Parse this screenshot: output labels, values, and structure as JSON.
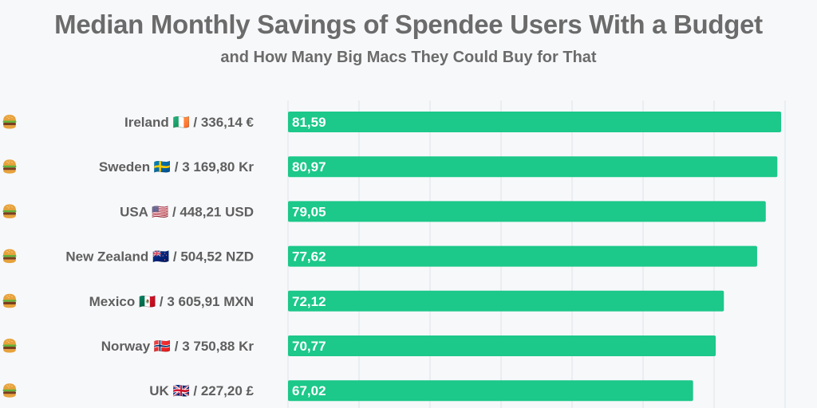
{
  "title": "Median Monthly Savings of Spendee Users With a Budget",
  "subtitle": "and How Many Big Macs They Could Buy for That",
  "colors": {
    "bar": "#1cc88a",
    "gridline": "#dfe3e8",
    "text": "#5f5f5f",
    "bun": "#e7a23b",
    "patty": "#7a3e1d",
    "lettuce": "#5fb33a"
  },
  "chart_data": {
    "type": "bar",
    "orientation": "horizontal",
    "title": "Median Monthly Savings of Spendee Users With a Budget",
    "subtitle": "and How Many Big Macs They Could Buy for That",
    "categories": [
      "Ireland 🇮🇪 / 336,14 €",
      "Sweden 🇸🇪 / 3 169,80 Kr",
      "USA 🇺🇸 / 448,21 USD",
      "New Zealand 🇳🇿 / 504,52 NZD",
      "Mexico 🇲🇽 / 3 605,91 MXN",
      "Norway 🇳🇴 / 3 750,88 Kr",
      "UK 🇬🇧 / 227,20 £"
    ],
    "values": [
      81.59,
      80.97,
      79.05,
      77.62,
      72.12,
      70.77,
      67.02
    ],
    "value_labels": [
      "81,59",
      "80,97",
      "79,05",
      "77,62",
      "72,12",
      "70,77",
      "67,02"
    ],
    "value_icon": "burger-icon",
    "xlim": [
      0,
      87
    ],
    "grid": true
  }
}
